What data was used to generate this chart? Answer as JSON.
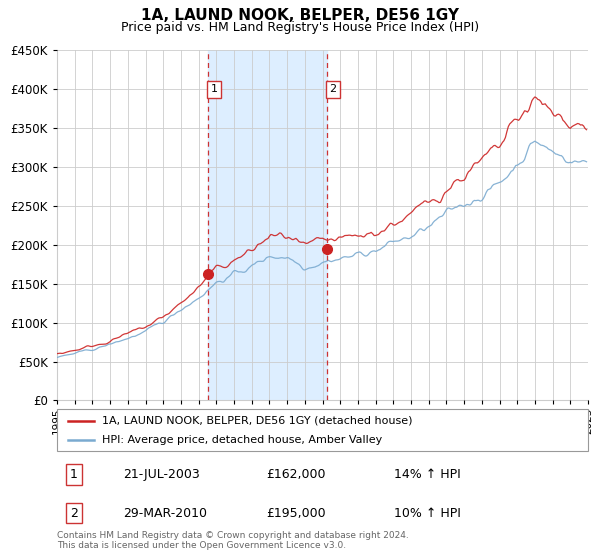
{
  "title": "1A, LAUND NOOK, BELPER, DE56 1GY",
  "subtitle": "Price paid vs. HM Land Registry's House Price Index (HPI)",
  "hpi_label": "HPI: Average price, detached house, Amber Valley",
  "property_label": "1A, LAUND NOOK, BELPER, DE56 1GY (detached house)",
  "footer": "Contains HM Land Registry data © Crown copyright and database right 2024.\nThis data is licensed under the Open Government Licence v3.0.",
  "sale1_date": "21-JUL-2003",
  "sale1_price": "£162,000",
  "sale1_hpi": "14% ↑ HPI",
  "sale2_date": "29-MAR-2010",
  "sale2_price": "£195,000",
  "sale2_hpi": "10% ↑ HPI",
  "ylim": [
    0,
    450000
  ],
  "hpi_color": "#7aaad0",
  "property_color": "#cc2222",
  "vline_color": "#cc3333",
  "shade_color": "#ddeeff",
  "grid_color": "#cccccc",
  "sale1_x": 2003.54,
  "sale2_x": 2010.23,
  "sale1_y": 162000,
  "sale2_y": 195000,
  "xmin": 1995.0,
  "xmax": 2025.0
}
